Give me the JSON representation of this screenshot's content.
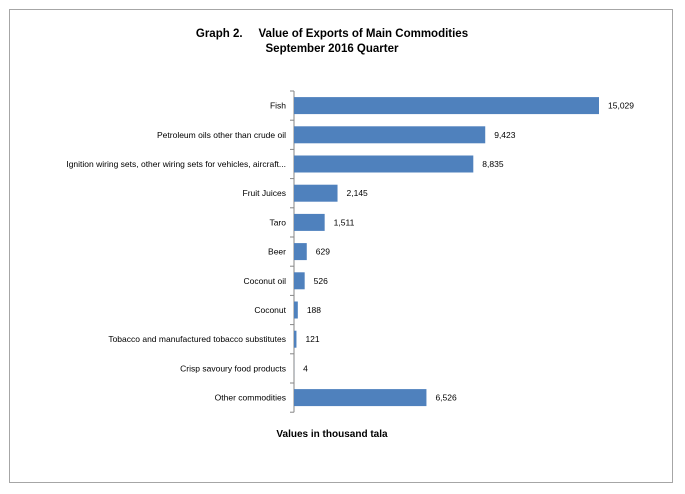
{
  "chart_data": {
    "type": "bar",
    "orientation": "horizontal",
    "title": "Graph 2.     Value of Exports of Main Commodities",
    "subtitle": "September 2016 Quarter",
    "xlabel": "Values in thousand tala",
    "ylabel": "",
    "categories": [
      "Fish",
      "Petroleum oils other than crude oil",
      "Ignition wiring sets, other wiring sets for vehicles, aircraft...",
      "Fruit Juices",
      "Taro",
      "Beer",
      "Coconut oil",
      "Coconut",
      "Tobacco and manufactured tobacco substitutes",
      "Crisp savoury food products",
      "Other commodities"
    ],
    "values": [
      15029,
      9423,
      8835,
      2145,
      1511,
      629,
      526,
      188,
      121,
      4,
      6526
    ],
    "value_labels": [
      "15,029",
      "9,423",
      "8,835",
      "2,145",
      "1,511",
      "629",
      "526",
      "188",
      "121",
      "4",
      "6,526"
    ],
    "xlim": [
      0,
      15029
    ],
    "grid": false,
    "legend": "none",
    "bar_color": "#4f81bd"
  }
}
